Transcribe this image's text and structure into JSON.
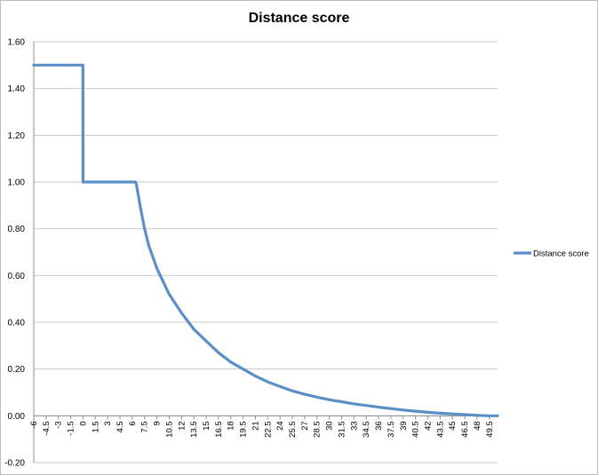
{
  "chart_data": {
    "type": "line",
    "title": "Distance score",
    "xlabel": "",
    "ylabel": "",
    "ylim": [
      -0.2,
      1.6
    ],
    "yticks": [
      "-0.20",
      "0.00",
      "0.20",
      "0.40",
      "0.60",
      "0.80",
      "1.00",
      "1.20",
      "1.40",
      "1.60"
    ],
    "x_categories": [
      "-6",
      "-4.5",
      "-3",
      "-1.5",
      "0",
      "1.5",
      "3",
      "4.5",
      "6",
      "7.5",
      "9",
      "10.5",
      "12",
      "13.5",
      "15",
      "16.5",
      "18",
      "19.5",
      "21",
      "22.5",
      "24",
      "25.5",
      "27",
      "28.5",
      "30",
      "31.5",
      "33",
      "34.5",
      "36",
      "37.5",
      "39",
      "40.5",
      "42",
      "43.5",
      "45",
      "46.5",
      "48",
      "49.5"
    ],
    "grid": true,
    "legend_position": "right",
    "color": "#5B8FC7",
    "series": [
      {
        "name": "Distance score",
        "x": [
          -6,
          -0.01,
          0,
          6.4,
          6.5,
          7,
          7.5,
          8,
          9,
          10.5,
          12,
          13.5,
          15,
          16.5,
          18,
          19.5,
          21,
          22.5,
          24,
          25.5,
          27,
          28.5,
          30,
          31.5,
          33,
          34.5,
          36,
          37.5,
          39,
          40.5,
          42,
          43.5,
          45,
          46.5,
          48,
          49.5,
          50.5
        ],
        "y": [
          1.5,
          1.5,
          1.0,
          1.0,
          0.99,
          0.89,
          0.8,
          0.73,
          0.63,
          0.52,
          0.44,
          0.37,
          0.32,
          0.27,
          0.23,
          0.2,
          0.17,
          0.145,
          0.125,
          0.107,
          0.092,
          0.08,
          0.069,
          0.06,
          0.051,
          0.044,
          0.037,
          0.031,
          0.025,
          0.02,
          0.015,
          0.011,
          0.008,
          0.005,
          0.002,
          0.0,
          0.0
        ]
      }
    ]
  }
}
